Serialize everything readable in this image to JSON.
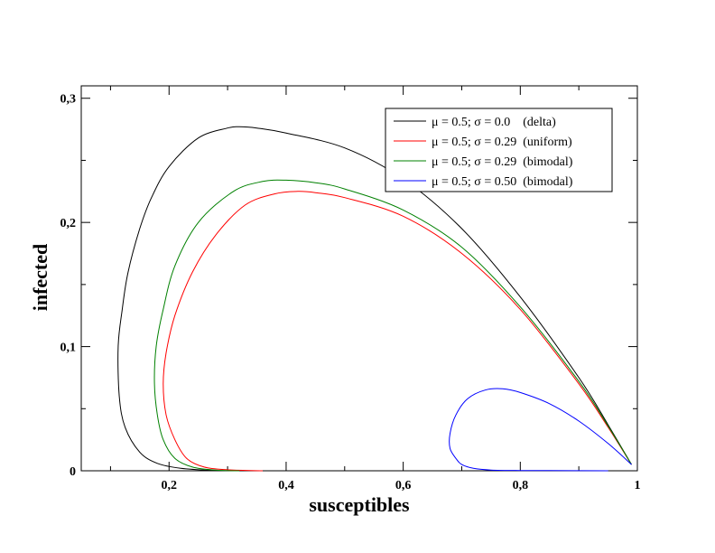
{
  "chart_data": {
    "type": "line",
    "title": "",
    "xlabel": "susceptibles",
    "ylabel": "infected",
    "xlim": [
      0.05,
      1.0
    ],
    "ylim": [
      0,
      0.31
    ],
    "x_ticks": [
      0.2,
      0.4,
      0.6,
      0.8,
      1.0
    ],
    "x_tick_labels": [
      "0,2",
      "0,4",
      "0,6",
      "0,8",
      "1"
    ],
    "y_ticks": [
      0,
      0.1,
      0.2,
      0.3
    ],
    "y_tick_labels": [
      "0",
      "0,1",
      "0,2",
      "0,3"
    ],
    "grid": false,
    "legend_position": "top-right",
    "series": [
      {
        "name": "μ = 0.5; σ = 0.0    (delta)",
        "color": "#000000",
        "points": [
          [
            0.99,
            0.005
          ],
          [
            0.95,
            0.037
          ],
          [
            0.9,
            0.075
          ],
          [
            0.8,
            0.14
          ],
          [
            0.7,
            0.195
          ],
          [
            0.6,
            0.235
          ],
          [
            0.5,
            0.26
          ],
          [
            0.4,
            0.272
          ],
          [
            0.35,
            0.276
          ],
          [
            0.32,
            0.277
          ],
          [
            0.3,
            0.276
          ],
          [
            0.25,
            0.268
          ],
          [
            0.2,
            0.245
          ],
          [
            0.17,
            0.22
          ],
          [
            0.15,
            0.195
          ],
          [
            0.13,
            0.16
          ],
          [
            0.12,
            0.13
          ],
          [
            0.113,
            0.1
          ],
          [
            0.115,
            0.06
          ],
          [
            0.125,
            0.035
          ],
          [
            0.15,
            0.015
          ],
          [
            0.18,
            0.006
          ],
          [
            0.22,
            0.002
          ],
          [
            0.27,
            0.0004
          ],
          [
            0.33,
            0.0
          ]
        ]
      },
      {
        "name": "μ = 0.5; σ = 0.29  (uniform)",
        "color": "#ff0000",
        "points": [
          [
            0.99,
            0.005
          ],
          [
            0.95,
            0.035
          ],
          [
            0.9,
            0.07
          ],
          [
            0.8,
            0.13
          ],
          [
            0.7,
            0.175
          ],
          [
            0.6,
            0.205
          ],
          [
            0.5,
            0.22
          ],
          [
            0.45,
            0.224
          ],
          [
            0.42,
            0.225
          ],
          [
            0.38,
            0.223
          ],
          [
            0.33,
            0.214
          ],
          [
            0.28,
            0.19
          ],
          [
            0.24,
            0.16
          ],
          [
            0.21,
            0.125
          ],
          [
            0.195,
            0.095
          ],
          [
            0.19,
            0.07
          ],
          [
            0.195,
            0.045
          ],
          [
            0.21,
            0.025
          ],
          [
            0.23,
            0.01
          ],
          [
            0.26,
            0.003
          ],
          [
            0.3,
            0.0008
          ],
          [
            0.36,
            0.0
          ]
        ]
      },
      {
        "name": "μ = 0.5; σ = 0.29  (bimodal)",
        "color": "#008000",
        "points": [
          [
            0.99,
            0.005
          ],
          [
            0.95,
            0.036
          ],
          [
            0.9,
            0.072
          ],
          [
            0.8,
            0.132
          ],
          [
            0.7,
            0.18
          ],
          [
            0.6,
            0.21
          ],
          [
            0.5,
            0.227
          ],
          [
            0.45,
            0.232
          ],
          [
            0.4,
            0.234
          ],
          [
            0.36,
            0.233
          ],
          [
            0.31,
            0.225
          ],
          [
            0.25,
            0.2
          ],
          [
            0.21,
            0.165
          ],
          [
            0.19,
            0.13
          ],
          [
            0.178,
            0.1
          ],
          [
            0.175,
            0.07
          ],
          [
            0.18,
            0.045
          ],
          [
            0.19,
            0.025
          ],
          [
            0.21,
            0.01
          ],
          [
            0.24,
            0.003
          ],
          [
            0.28,
            0.0005
          ],
          [
            0.32,
            0.0
          ]
        ]
      },
      {
        "name": "μ = 0.5; σ = 0.50  (bimodal)",
        "color": "#0000ff",
        "points": [
          [
            0.99,
            0.005
          ],
          [
            0.95,
            0.022
          ],
          [
            0.9,
            0.04
          ],
          [
            0.85,
            0.054
          ],
          [
            0.8,
            0.063
          ],
          [
            0.77,
            0.066
          ],
          [
            0.74,
            0.065
          ],
          [
            0.71,
            0.058
          ],
          [
            0.69,
            0.045
          ],
          [
            0.68,
            0.03
          ],
          [
            0.68,
            0.018
          ],
          [
            0.69,
            0.01
          ],
          [
            0.7,
            0.005
          ],
          [
            0.72,
            0.002
          ],
          [
            0.75,
            0.0006
          ],
          [
            0.8,
            0.0002
          ],
          [
            0.9,
            0.0001
          ],
          [
            0.95,
            0.0
          ]
        ]
      }
    ]
  }
}
